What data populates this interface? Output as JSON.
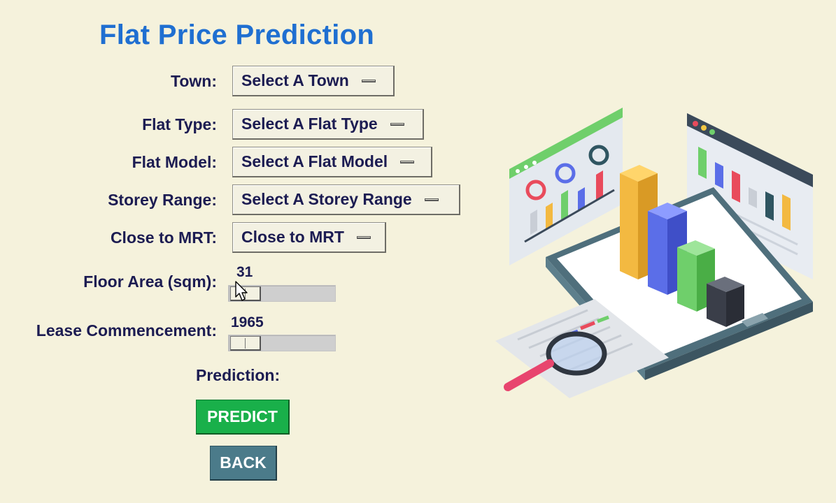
{
  "title": "Flat Price Prediction",
  "fields": {
    "town": {
      "label": "Town:",
      "value": "Select A Town"
    },
    "flat_type": {
      "label": "Flat Type:",
      "value": "Select A Flat Type"
    },
    "flat_model": {
      "label": "Flat Model:",
      "value": "Select A Flat Model"
    },
    "storey_range": {
      "label": "Storey Range:",
      "value": "Select A Storey Range"
    },
    "close_to_mrt": {
      "label": "Close to MRT:",
      "value": "Close to MRT"
    },
    "floor_area": {
      "label": "Floor Area (sqm):",
      "value": "31"
    },
    "lease_commencement": {
      "label": "Lease Commencement:",
      "value": "1965"
    }
  },
  "prediction": {
    "label": "Prediction:",
    "value": ""
  },
  "buttons": {
    "predict": "PREDICT",
    "back": "BACK"
  },
  "colors": {
    "background": "#f5f2dc",
    "title": "#1f6fd1",
    "predict": "#19b04a",
    "back": "#4b7b8a"
  },
  "icons": {
    "cursor": "arrow-cursor-icon",
    "illustration": "data-analytics-illustration"
  }
}
